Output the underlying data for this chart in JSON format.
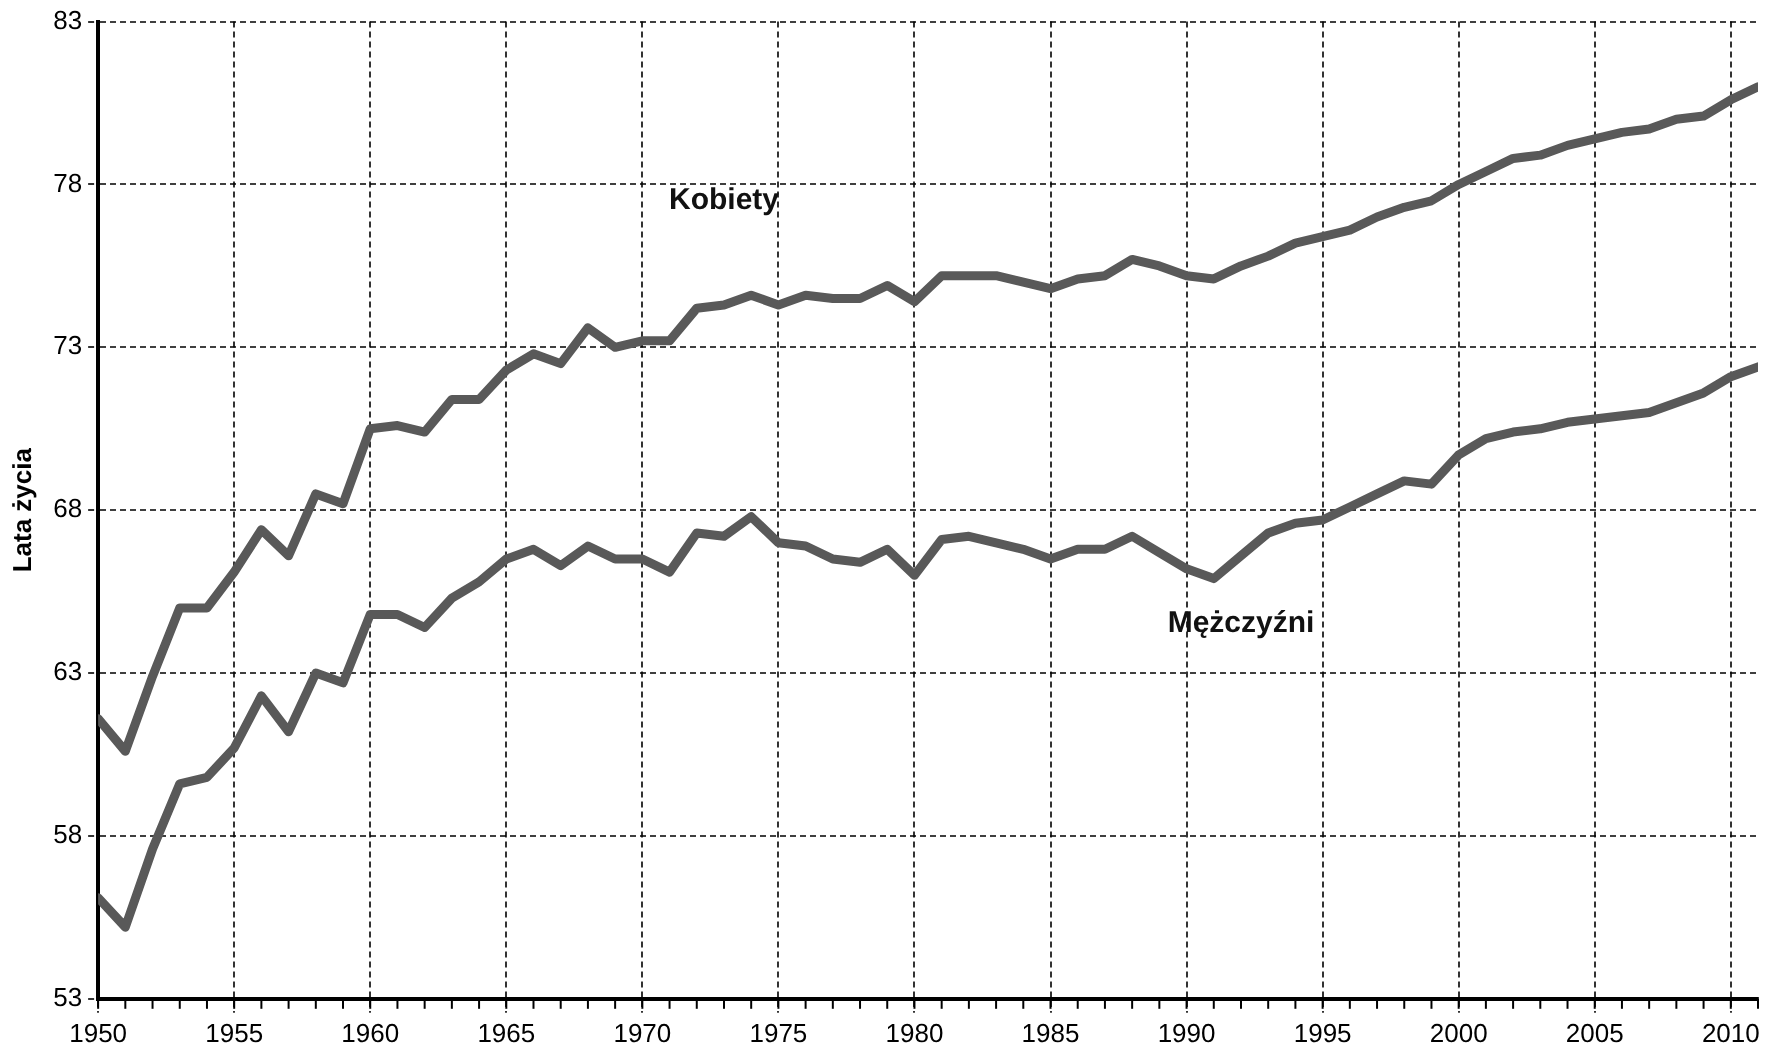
{
  "chart_data": {
    "type": "line",
    "ylabel": "Lata życia",
    "x": [
      1950,
      1951,
      1952,
      1953,
      1954,
      1955,
      1956,
      1957,
      1958,
      1959,
      1960,
      1961,
      1962,
      1963,
      1964,
      1965,
      1966,
      1967,
      1968,
      1969,
      1970,
      1971,
      1972,
      1973,
      1974,
      1975,
      1976,
      1977,
      1978,
      1979,
      1980,
      1981,
      1982,
      1983,
      1984,
      1985,
      1986,
      1987,
      1988,
      1989,
      1990,
      1991,
      1992,
      1993,
      1994,
      1995,
      1996,
      1997,
      1998,
      1999,
      2000,
      2001,
      2002,
      2003,
      2004,
      2005,
      2006,
      2007,
      2008,
      2009,
      2010,
      2011
    ],
    "series": [
      {
        "name": "Kobiety",
        "color": "#595959",
        "values": [
          61.6,
          60.6,
          62.9,
          65.0,
          65.0,
          66.1,
          67.4,
          66.6,
          68.5,
          68.2,
          70.5,
          70.6,
          70.4,
          71.4,
          71.4,
          72.3,
          72.8,
          72.5,
          73.6,
          73.0,
          73.2,
          73.2,
          74.2,
          74.3,
          74.6,
          74.3,
          74.6,
          74.5,
          74.5,
          74.9,
          74.4,
          75.2,
          75.2,
          75.2,
          75.0,
          74.8,
          75.1,
          75.2,
          75.7,
          75.5,
          75.2,
          75.1,
          75.5,
          75.8,
          76.2,
          76.4,
          76.6,
          77.0,
          77.3,
          77.5,
          78.0,
          78.4,
          78.8,
          78.9,
          79.2,
          79.4,
          79.6,
          79.7,
          80.0,
          80.1,
          80.6,
          81.0
        ]
      },
      {
        "name": "Mężczyźni",
        "color": "#595959",
        "values": [
          56.1,
          55.2,
          57.6,
          59.6,
          59.8,
          60.7,
          62.3,
          61.2,
          63.0,
          62.7,
          64.8,
          64.8,
          64.4,
          65.3,
          65.8,
          66.5,
          66.8,
          66.3,
          66.9,
          66.5,
          66.5,
          66.1,
          67.3,
          67.2,
          67.8,
          67.0,
          66.9,
          66.5,
          66.4,
          66.8,
          66.0,
          67.1,
          67.2,
          67.0,
          66.8,
          66.5,
          66.8,
          66.8,
          67.2,
          66.7,
          66.2,
          65.9,
          66.6,
          67.3,
          67.6,
          67.7,
          68.1,
          68.5,
          68.9,
          68.8,
          69.7,
          70.2,
          70.4,
          70.5,
          70.7,
          70.8,
          70.9,
          71.0,
          71.3,
          71.6,
          72.1,
          72.4
        ]
      }
    ],
    "xlim": [
      1950,
      2011
    ],
    "xticks": [
      1950,
      1955,
      1960,
      1965,
      1970,
      1975,
      1980,
      1985,
      1990,
      1995,
      2000,
      2005,
      2010
    ],
    "ylim": [
      53,
      83
    ],
    "yticks": [
      53,
      58,
      63,
      68,
      73,
      78,
      83
    ],
    "grid": true,
    "legend": false,
    "marker": "none",
    "line_style": "solid"
  }
}
